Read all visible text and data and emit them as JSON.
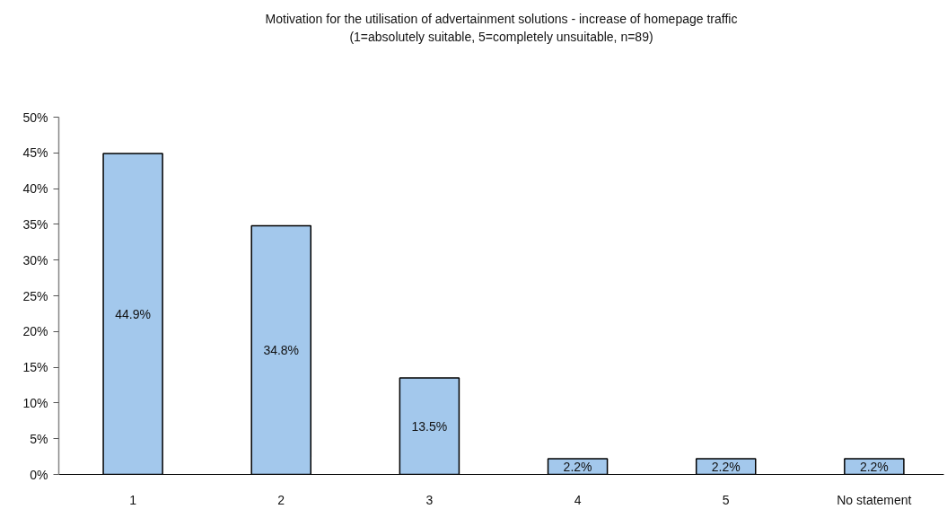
{
  "chart_data": {
    "type": "bar",
    "title": "Motivation for the utilisation of advertainment solutions - increase of homepage traffic",
    "subtitle": "(1=absolutely suitable, 5=completely unsuitable, n=89)",
    "categories": [
      "1",
      "2",
      "3",
      "4",
      "5",
      "No statement"
    ],
    "values": [
      44.9,
      34.8,
      13.5,
      2.2,
      2.2,
      2.2
    ],
    "value_labels": [
      "44.9%",
      "34.8%",
      "13.5%",
      "2.2%",
      "2.2%",
      "2.2%"
    ],
    "color": "#a3c8ec",
    "ylim": [
      0,
      50
    ],
    "yticks": [
      {
        "value": 0,
        "label": "0%"
      },
      {
        "value": 5,
        "label": "5%"
      },
      {
        "value": 10,
        "label": "10%"
      },
      {
        "value": 15,
        "label": "15%"
      },
      {
        "value": 20,
        "label": "20%"
      },
      {
        "value": 25,
        "label": "25%"
      },
      {
        "value": 30,
        "label": "30%"
      },
      {
        "value": 35,
        "label": "35%"
      },
      {
        "value": 40,
        "label": "40%"
      },
      {
        "value": 45,
        "label": "45%"
      },
      {
        "value": 50,
        "label": "50%"
      }
    ]
  }
}
